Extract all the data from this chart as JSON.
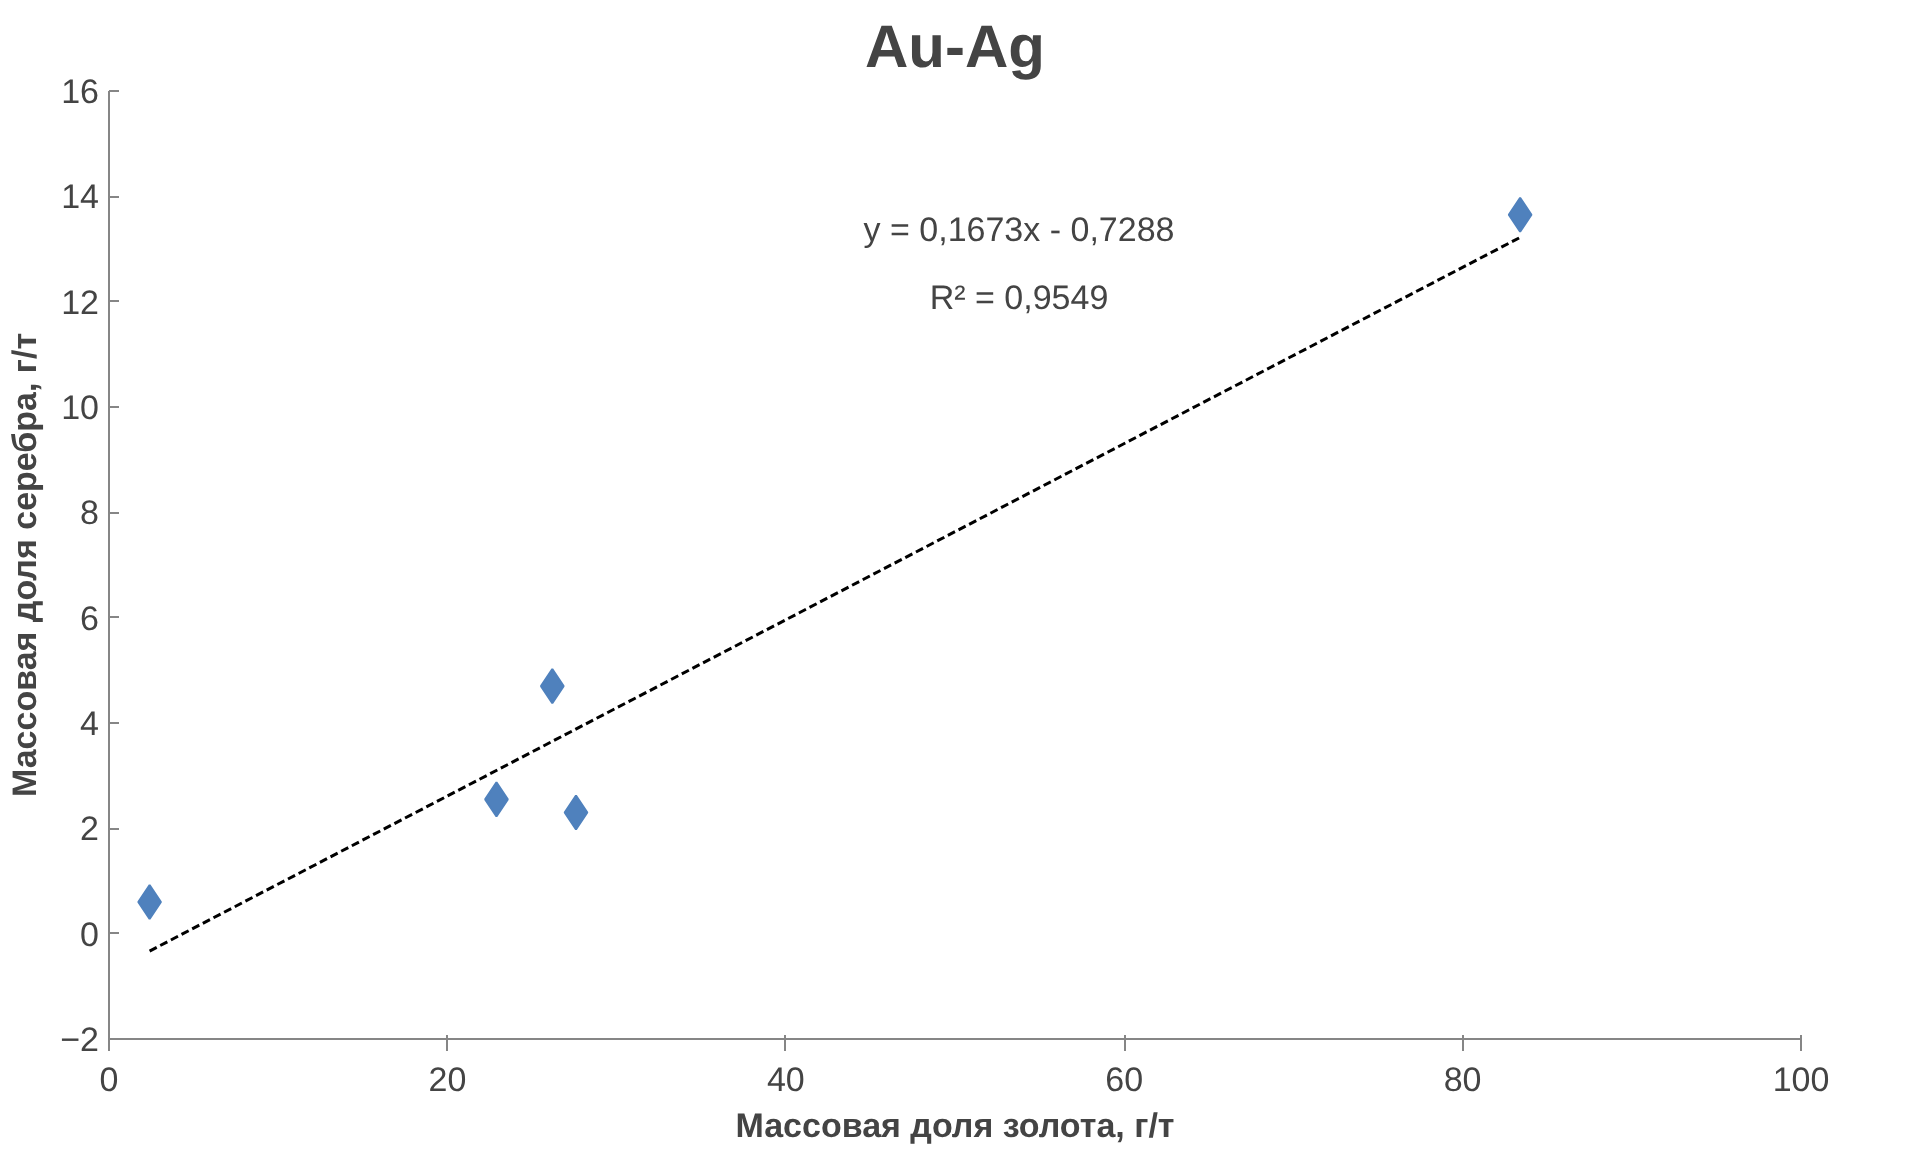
{
  "chart_data": {
    "type": "scatter",
    "title": "Au-Ag",
    "xlabel": "Массовая доля золота, г/т",
    "ylabel": "Массовая доля серебра, г/т",
    "xlim": [
      0,
      100
    ],
    "xticks": [
      0,
      20,
      40,
      60,
      80,
      100
    ],
    "ylim": [
      -2,
      16
    ],
    "yticks": [
      -2,
      0,
      2,
      4,
      6,
      8,
      10,
      12,
      14,
      16
    ],
    "grid": false,
    "marker": "diamond",
    "series": [
      {
        "color": "#4f81bd",
        "x": [
          2.4,
          22.9,
          26.2,
          27.6,
          83.4
        ],
        "values": [
          0.6,
          2.55,
          4.7,
          2.3,
          13.65
        ]
      },
      {
        "type": "line",
        "color": "#000000",
        "line_style": "dashed",
        "marker": "none",
        "x": [
          2.4,
          83.4
        ],
        "values": [
          -0.33,
          13.22
        ]
      }
    ],
    "annotations": [
      "y = 0,1673x - 0,7288",
      "R² = 0,9549"
    ]
  }
}
